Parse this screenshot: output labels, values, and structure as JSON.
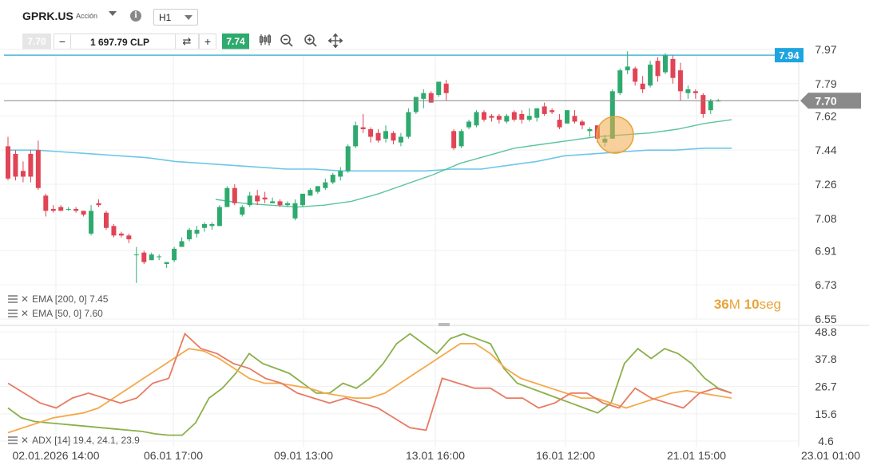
{
  "header": {
    "symbol": "GPRK.US",
    "symbol_type": "Acción",
    "timeframe": "H1",
    "info_label": "i"
  },
  "order": {
    "bid": "7.70",
    "ask": "7.74",
    "quantity": "1 697.79 CLP",
    "minus": "−",
    "plus": "+",
    "swap": "⇄"
  },
  "toolbar": {
    "candles_icon": "candles-icon",
    "zoom_out_icon": "zoom-out-icon",
    "zoom_in_icon": "zoom-in-icon",
    "move_icon": "move-icon"
  },
  "indicators": {
    "ema200": "EMA [200, 0] 7.45",
    "ema50": "EMA [50, 0] 7.60",
    "adx": "ADX [14] 19.4, 24.1, 23.9"
  },
  "timer": {
    "minutes": "36",
    "m": "M",
    "seconds": "10",
    "s": "seg"
  },
  "chart_data": {
    "type": "candlestick",
    "price_axis": [
      "7.97",
      "7.79",
      "7.62",
      "7.44",
      "7.26",
      "7.08",
      "6.91",
      "6.73",
      "6.55"
    ],
    "price_range": [
      6.55,
      7.97
    ],
    "adx_axis": [
      "48.8",
      "37.8",
      "26.7",
      "15.6",
      "4.6"
    ],
    "adx_range": [
      4.6,
      48.8
    ],
    "time_axis": [
      "02.01.2026 14:00",
      "06.01 17:00",
      "09.01 13:00",
      "13.01 16:00",
      "16.01 12:00",
      "21.01 15:00",
      "23.01 01:00"
    ],
    "current_price": "7.70",
    "resistance_line": "7.94",
    "colors": {
      "up": "#2eaa6e",
      "down": "#e04455",
      "ema200": "#6ec6e8",
      "ema50": "#5cc49a",
      "adx": "#8ab04a",
      "di_plus": "#f3a94a",
      "di_minus": "#e87a62",
      "resistance": "#2aa9c9",
      "label_resistance": "#1ea5e0",
      "label_price": "#8a8a8a"
    },
    "candles": [
      [
        7.46,
        7.51,
        7.28,
        7.29
      ],
      [
        7.42,
        7.44,
        7.28,
        7.3
      ],
      [
        7.33,
        7.38,
        7.27,
        7.3
      ],
      [
        7.42,
        7.44,
        7.27,
        7.3
      ],
      [
        7.44,
        7.49,
        7.23,
        7.24
      ],
      [
        7.2,
        7.21,
        7.09,
        7.12
      ],
      [
        7.13,
        7.15,
        7.11,
        7.12
      ],
      [
        7.14,
        7.15,
        7.12,
        7.12
      ],
      [
        7.13,
        7.14,
        7.12,
        7.13
      ],
      [
        7.13,
        7.14,
        7.11,
        7.12
      ],
      [
        7.12,
        7.12,
        7.09,
        7.1
      ],
      [
        7.0,
        7.15,
        6.99,
        7.12
      ],
      [
        7.16,
        7.18,
        7.14,
        7.15
      ],
      [
        7.11,
        7.12,
        7.02,
        7.03
      ],
      [
        7.04,
        7.05,
        6.98,
        6.99
      ],
      [
        7.0,
        7.01,
        6.98,
        6.99
      ],
      [
        6.99,
        7.0,
        6.95,
        6.97
      ],
      [
        6.89,
        6.93,
        6.74,
        6.89
      ],
      [
        6.9,
        6.91,
        6.84,
        6.85
      ],
      [
        6.86,
        6.9,
        6.86,
        6.89
      ],
      [
        6.88,
        6.89,
        6.86,
        6.88
      ],
      [
        6.84,
        6.85,
        6.82,
        6.85
      ],
      [
        6.86,
        6.93,
        6.85,
        6.92
      ],
      [
        6.93,
        6.98,
        6.93,
        6.96
      ],
      [
        6.97,
        7.03,
        6.96,
        7.02
      ],
      [
        7.0,
        7.04,
        6.98,
        7.02
      ],
      [
        7.03,
        7.06,
        7.01,
        7.05
      ],
      [
        7.04,
        7.06,
        7.02,
        7.05
      ],
      [
        7.04,
        7.15,
        7.04,
        7.14
      ],
      [
        7.14,
        7.25,
        7.14,
        7.24
      ],
      [
        7.24,
        7.26,
        7.15,
        7.16
      ],
      [
        7.1,
        7.15,
        7.09,
        7.14
      ],
      [
        7.15,
        7.22,
        7.14,
        7.2
      ],
      [
        7.2,
        7.23,
        7.15,
        7.17
      ],
      [
        7.19,
        7.22,
        7.16,
        7.18
      ],
      [
        7.16,
        7.19,
        7.16,
        7.17
      ],
      [
        7.17,
        7.18,
        7.14,
        7.15
      ],
      [
        7.15,
        7.17,
        7.14,
        7.16
      ],
      [
        7.08,
        7.18,
        7.07,
        7.16
      ],
      [
        7.15,
        7.21,
        7.14,
        7.21
      ],
      [
        7.2,
        7.24,
        7.2,
        7.23
      ],
      [
        7.22,
        7.25,
        7.21,
        7.25
      ],
      [
        7.24,
        7.29,
        7.23,
        7.27
      ],
      [
        7.27,
        7.32,
        7.26,
        7.31
      ],
      [
        7.3,
        7.35,
        7.28,
        7.33
      ],
      [
        7.33,
        7.47,
        7.32,
        7.46
      ],
      [
        7.46,
        7.59,
        7.45,
        7.57
      ],
      [
        7.56,
        7.63,
        7.53,
        7.55
      ],
      [
        7.55,
        7.56,
        7.48,
        7.51
      ],
      [
        7.53,
        7.55,
        7.48,
        7.49
      ],
      [
        7.5,
        7.57,
        7.48,
        7.54
      ],
      [
        7.53,
        7.54,
        7.47,
        7.49
      ],
      [
        7.48,
        7.53,
        7.46,
        7.51
      ],
      [
        7.51,
        7.66,
        7.5,
        7.64
      ],
      [
        7.64,
        7.72,
        7.63,
        7.72
      ],
      [
        7.71,
        7.76,
        7.66,
        7.74
      ],
      [
        7.74,
        7.75,
        7.69,
        7.69
      ],
      [
        7.73,
        7.8,
        7.72,
        7.8
      ],
      [
        7.79,
        7.81,
        7.7,
        7.74
      ],
      [
        7.54,
        7.55,
        7.44,
        7.45
      ],
      [
        7.46,
        7.55,
        7.45,
        7.54
      ],
      [
        7.56,
        7.6,
        7.55,
        7.59
      ],
      [
        7.57,
        7.65,
        7.56,
        7.64
      ],
      [
        7.64,
        7.65,
        7.59,
        7.6
      ],
      [
        7.62,
        7.63,
        7.59,
        7.61
      ],
      [
        7.62,
        7.63,
        7.58,
        7.6
      ],
      [
        7.59,
        7.63,
        7.58,
        7.62
      ],
      [
        7.64,
        7.65,
        7.59,
        7.6
      ],
      [
        7.63,
        7.65,
        7.58,
        7.6
      ],
      [
        7.6,
        7.66,
        7.59,
        7.62
      ],
      [
        7.61,
        7.66,
        7.59,
        7.66
      ],
      [
        7.67,
        7.69,
        7.62,
        7.63
      ],
      [
        7.65,
        7.66,
        7.63,
        7.64
      ],
      [
        7.6,
        7.63,
        7.55,
        7.56
      ],
      [
        7.58,
        7.65,
        7.58,
        7.65
      ],
      [
        7.62,
        7.65,
        7.58,
        7.59
      ],
      [
        7.59,
        7.6,
        7.55,
        7.57
      ],
      [
        7.54,
        7.56,
        7.51,
        7.55
      ],
      [
        7.57,
        7.57,
        7.48,
        7.5
      ],
      [
        7.48,
        7.52,
        7.46,
        7.5
      ],
      [
        7.5,
        7.76,
        7.5,
        7.75
      ],
      [
        7.74,
        7.87,
        7.73,
        7.86
      ],
      [
        7.86,
        7.96,
        7.84,
        7.88
      ],
      [
        7.87,
        7.88,
        7.78,
        7.8
      ],
      [
        7.79,
        7.83,
        7.74,
        7.76
      ],
      [
        7.78,
        7.91,
        7.77,
        7.89
      ],
      [
        7.91,
        7.93,
        7.8,
        7.83
      ],
      [
        7.85,
        7.95,
        7.84,
        7.94
      ],
      [
        7.92,
        7.94,
        7.79,
        7.82
      ],
      [
        7.86,
        7.9,
        7.7,
        7.75
      ],
      [
        7.74,
        7.78,
        7.71,
        7.76
      ],
      [
        7.75,
        7.76,
        7.71,
        7.74
      ],
      [
        7.73,
        7.74,
        7.61,
        7.63
      ],
      [
        7.65,
        7.71,
        7.63,
        7.7
      ],
      [
        7.7,
        7.71,
        7.7,
        7.7
      ]
    ],
    "ema200": [
      7.44,
      7.44,
      7.43,
      7.42,
      7.41,
      7.4,
      7.38,
      7.37,
      7.36,
      7.35,
      7.34,
      7.34,
      7.33,
      7.33,
      7.33,
      7.33,
      7.34,
      7.34,
      7.36,
      7.38,
      7.41,
      7.42,
      7.43,
      7.44,
      7.44,
      7.45,
      7.45
    ],
    "ema50": [
      7.18,
      7.16,
      7.15,
      7.14,
      7.15,
      7.17,
      7.21,
      7.26,
      7.31,
      7.37,
      7.41,
      7.45,
      7.47,
      7.49,
      7.51,
      7.52,
      7.53,
      7.55,
      7.58,
      7.6
    ],
    "adx": [
      18.0,
      14.0,
      12.5,
      12.0,
      11.5,
      11.0,
      10.5,
      10.0,
      9.5,
      9.0,
      8.5,
      7.5,
      7.0,
      7.0,
      12,
      22,
      26,
      32,
      40,
      36,
      34,
      32,
      28,
      24,
      24,
      28,
      26,
      30,
      36,
      44,
      48,
      44,
      40,
      46,
      48,
      46,
      44,
      34,
      28,
      26,
      24,
      22,
      20,
      18,
      16,
      20,
      36,
      42,
      38,
      42,
      40,
      36,
      30,
      26,
      24
    ],
    "di_plus": [
      8,
      10,
      12,
      14,
      15,
      16,
      18,
      22,
      26,
      30,
      34,
      38,
      42,
      41,
      38,
      34,
      30,
      28,
      28,
      27,
      26,
      24,
      23,
      22,
      22,
      24,
      28,
      32,
      36,
      40,
      44,
      44,
      40,
      34,
      30,
      28,
      26,
      24,
      22,
      22,
      20,
      18,
      20,
      22,
      24,
      25,
      24,
      23,
      22
    ],
    "di_minus": [
      28,
      24,
      20,
      18,
      22,
      24,
      22,
      20,
      22,
      28,
      30,
      48,
      42,
      40,
      36,
      34,
      30,
      28,
      24,
      22,
      20,
      22,
      20,
      18,
      14,
      10,
      9,
      30,
      28,
      26,
      26,
      22,
      22,
      18,
      20,
      24,
      24,
      20,
      18,
      26,
      22,
      20,
      18,
      24,
      26,
      24
    ]
  }
}
